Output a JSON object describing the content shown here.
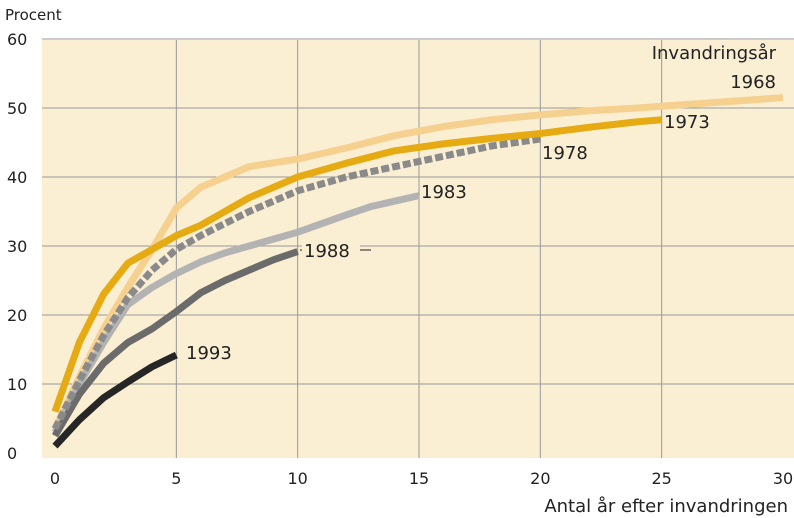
{
  "chart_data": {
    "type": "line",
    "ylabel": "Procent",
    "xlabel": "Antal år efter invandringen",
    "legend_title": "Invandringsår",
    "xlim": [
      0,
      30
    ],
    "ylim": [
      0,
      60
    ],
    "x_ticks": [
      0,
      5,
      10,
      15,
      20,
      25,
      30
    ],
    "y_ticks": [
      0,
      10,
      20,
      30,
      40,
      50,
      60
    ],
    "grid": true,
    "colors": {
      "background": "#faeed3",
      "grid": "#999999",
      "1968": "#f5d08f",
      "1973": "#e6aa12",
      "1978": "#8a8a8a",
      "1983": "#b3b3b3",
      "1988": "#6b6b6b",
      "1993": "#262626"
    },
    "series": [
      {
        "name": "1968",
        "x": [
          0,
          1,
          2,
          3,
          4,
          5,
          6,
          7,
          8,
          10,
          12,
          14,
          16,
          18,
          20,
          22,
          24,
          26,
          28,
          30
        ],
        "y": [
          3.5,
          11,
          18,
          24,
          29.5,
          35.5,
          38.5,
          40,
          41.5,
          42.6,
          44.2,
          46,
          47.3,
          48.3,
          49,
          49.6,
          50,
          50.5,
          51,
          51.5
        ]
      },
      {
        "name": "1973",
        "x": [
          0,
          1,
          2,
          3,
          4,
          5,
          6,
          7,
          8,
          10,
          12,
          14,
          16,
          18,
          20,
          22,
          24,
          25
        ],
        "y": [
          6,
          16,
          23,
          27.5,
          29.5,
          31.5,
          33,
          35,
          37,
          40,
          42,
          43.8,
          44.8,
          45.6,
          46.3,
          47.2,
          48,
          48.3
        ]
      },
      {
        "name": "1978",
        "x": [
          0,
          1,
          2,
          3,
          4,
          5,
          6,
          8,
          10,
          12,
          14,
          16,
          18,
          20
        ],
        "y": [
          3.5,
          10.5,
          17,
          22.5,
          26.5,
          29.5,
          31.5,
          35,
          38,
          40,
          41.5,
          43,
          44.5,
          45.5
        ]
      },
      {
        "name": "1983",
        "x": [
          0,
          1,
          2,
          3,
          4,
          5,
          6,
          7,
          8,
          10,
          12,
          13,
          15
        ],
        "y": [
          3,
          10,
          16,
          21.5,
          24,
          26,
          27.7,
          29,
          30,
          32,
          34.5,
          35.7,
          37.3
        ]
      },
      {
        "name": "1988",
        "x": [
          0,
          1,
          2,
          3,
          4,
          5,
          6,
          7,
          8,
          9,
          10
        ],
        "y": [
          2.5,
          8.5,
          13,
          16,
          18,
          20.5,
          23.2,
          25,
          26.5,
          28,
          29.2
        ]
      },
      {
        "name": "1993",
        "x": [
          0,
          1,
          2,
          3,
          4,
          5
        ],
        "y": [
          1,
          4.8,
          8,
          10.3,
          12.5,
          14.2
        ]
      }
    ],
    "label_text": [
      "1968",
      "1973",
      "1978",
      "1983",
      "1988",
      "1993"
    ]
  }
}
